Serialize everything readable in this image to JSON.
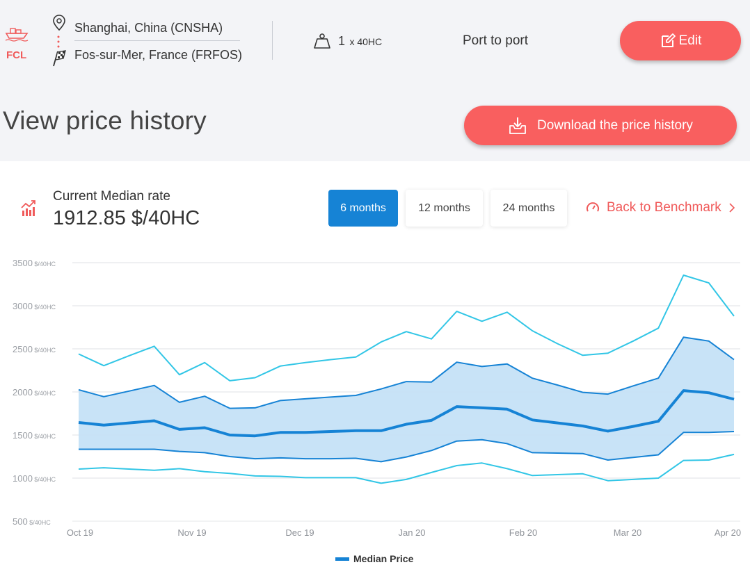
{
  "header": {
    "mode_label": "FCL",
    "origin": "Shanghai, China (CNSHA)",
    "destination": "Fos-sur-Mer, France (FRFOS)",
    "container_qty": "1",
    "container_type": "x 40HC",
    "service": "Port to port",
    "edit_label": "Edit"
  },
  "page": {
    "title": "View price history",
    "download_label": "Download the price history"
  },
  "stats": {
    "label": "Current Median rate",
    "value": "1912.85 $/40HC"
  },
  "tabs": [
    {
      "label": "6 months",
      "active": true
    },
    {
      "label": "12 months",
      "active": false
    },
    {
      "label": "24 months",
      "active": false
    }
  ],
  "back_link": "Back to Benchmark",
  "colors": {
    "accent": "#f95f5f",
    "blue": "#1683d5",
    "band": "#c5e1f7",
    "outer": "#32c6e6"
  },
  "chart_data": {
    "type": "line",
    "ylim": [
      500,
      3500
    ],
    "y_ticks": [
      500,
      1000,
      1500,
      2000,
      2500,
      3000,
      3500
    ],
    "y_unit": "$/40HC",
    "x_tick_labels": [
      "Oct 19",
      "Nov 19",
      "Dec 19",
      "Jan 20",
      "Feb 20",
      "Mar 20",
      "Apr 20"
    ],
    "legend": "Median Price",
    "series": [
      {
        "name": "upper_outer",
        "values": [
          2440,
          2305,
          2420,
          2530,
          2200,
          2340,
          2130,
          2165,
          2300,
          2340,
          2375,
          2405,
          2580,
          2700,
          2615,
          2935,
          2820,
          2925,
          2710,
          2560,
          2425,
          2450,
          2590,
          2740,
          3355,
          3265,
          2880
        ]
      },
      {
        "name": "upper_band",
        "values": [
          2025,
          1945,
          2010,
          2075,
          1880,
          1950,
          1810,
          1815,
          1900,
          1920,
          1940,
          1960,
          2035,
          2120,
          2115,
          2345,
          2295,
          2325,
          2160,
          2080,
          1995,
          1975,
          2070,
          2160,
          2635,
          2590,
          2375
        ]
      },
      {
        "name": "median",
        "values": [
          1645,
          1615,
          1640,
          1665,
          1565,
          1585,
          1500,
          1490,
          1530,
          1530,
          1540,
          1550,
          1550,
          1625,
          1670,
          1830,
          1815,
          1800,
          1675,
          1640,
          1605,
          1545,
          1600,
          1660,
          2015,
          1990,
          1915
        ]
      },
      {
        "name": "lower_band",
        "values": [
          1335,
          1335,
          1335,
          1335,
          1310,
          1295,
          1250,
          1225,
          1235,
          1225,
          1225,
          1230,
          1190,
          1245,
          1320,
          1430,
          1445,
          1400,
          1295,
          1290,
          1285,
          1210,
          1240,
          1270,
          1530,
          1530,
          1540
        ]
      },
      {
        "name": "lower_outer",
        "values": [
          1105,
          1120,
          1105,
          1090,
          1110,
          1075,
          1055,
          1025,
          1020,
          1005,
          1005,
          1005,
          940,
          985,
          1065,
          1145,
          1175,
          1110,
          1030,
          1040,
          1050,
          970,
          985,
          1000,
          1205,
          1210,
          1275
        ]
      }
    ]
  }
}
